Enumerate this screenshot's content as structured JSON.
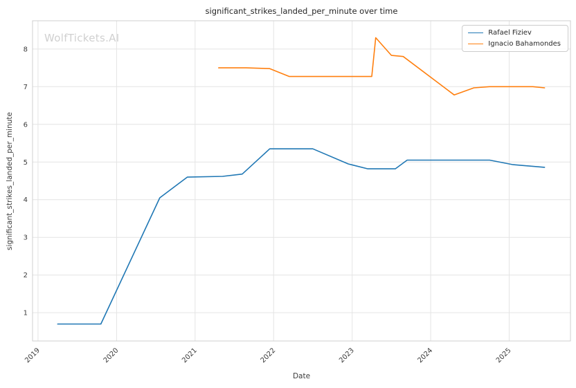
{
  "watermark": {
    "text": "WolfTickets.AI"
  },
  "chart_data": {
    "type": "line",
    "title": "significant_strikes_landed_per_minute over time",
    "xlabel": "Date",
    "ylabel": "significant_strikes_landed_per_minute",
    "grid": true,
    "legend_position": "upper right",
    "xlim": [
      2018.93,
      2025.78
    ],
    "ylim": [
      0.25,
      8.75
    ],
    "x_ticks": [
      2019,
      2020,
      2021,
      2022,
      2023,
      2024,
      2025
    ],
    "y_ticks": [
      1,
      2,
      3,
      4,
      5,
      6,
      7,
      8
    ],
    "series": [
      {
        "name": "Rafael Fiziev",
        "color": "#1f77b4",
        "points": [
          [
            2019.25,
            0.7
          ],
          [
            2019.8,
            0.7
          ],
          [
            2020.55,
            4.05
          ],
          [
            2020.9,
            4.6
          ],
          [
            2021.35,
            4.62
          ],
          [
            2021.6,
            4.68
          ],
          [
            2021.95,
            5.35
          ],
          [
            2022.5,
            5.35
          ],
          [
            2022.95,
            4.95
          ],
          [
            2023.2,
            4.82
          ],
          [
            2023.55,
            4.82
          ],
          [
            2023.7,
            5.05
          ],
          [
            2024.6,
            5.05
          ],
          [
            2024.75,
            5.05
          ],
          [
            2025.05,
            4.93
          ],
          [
            2025.45,
            4.86
          ]
        ]
      },
      {
        "name": "Ignacio Bahamondes",
        "color": "#ff7f0e",
        "points": [
          [
            2021.3,
            7.5
          ],
          [
            2021.65,
            7.5
          ],
          [
            2021.95,
            7.48
          ],
          [
            2022.2,
            7.27
          ],
          [
            2022.55,
            7.27
          ],
          [
            2023.1,
            7.27
          ],
          [
            2023.25,
            7.27
          ],
          [
            2023.3,
            8.3
          ],
          [
            2023.5,
            7.83
          ],
          [
            2023.65,
            7.8
          ],
          [
            2024.3,
            6.78
          ],
          [
            2024.55,
            6.97
          ],
          [
            2024.75,
            7.0
          ],
          [
            2025.1,
            7.0
          ],
          [
            2025.3,
            7.0
          ],
          [
            2025.45,
            6.97
          ]
        ]
      }
    ]
  }
}
